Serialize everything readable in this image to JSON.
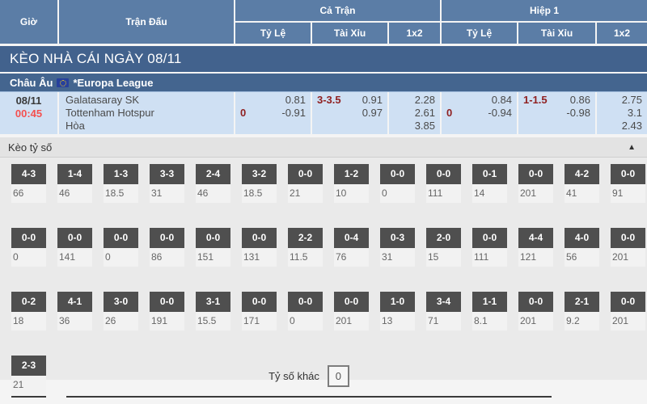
{
  "colors": {
    "header_blue": "#5b7da6",
    "banner_blue": "#42628d",
    "match_row_blue": "#cfe0f3",
    "handicap_maroon": "#8f1f1f",
    "time_red": "#f4504f",
    "score_pill_gray": "#4f4f4f"
  },
  "header": {
    "col_time": "Giờ",
    "col_match": "Trận Đấu",
    "group_full": "Cả Trận",
    "group_half": "Hiệp 1",
    "sub_handicap": "Tỷ Lệ",
    "sub_overunder": "Tài Xỉu",
    "sub_1x2": "1x2"
  },
  "banner": {
    "title": "KÈO NHÀ CÁI NGÀY 08/11"
  },
  "league": {
    "region": "Châu Âu",
    "name": "*Europa League"
  },
  "match": {
    "date": "08/11",
    "time": "00:45",
    "home": "Galatasaray SK",
    "away": "Tottenham Hotspur",
    "draw_label": "Hòa",
    "full": {
      "handicap_line": "0",
      "handicap_home": "0.81",
      "handicap_away": "-0.91",
      "ou_line": "3-3.5",
      "ou_over": "0.91",
      "ou_under": "0.97",
      "x12_home": "2.28",
      "x12_away": "2.61",
      "x12_draw": "3.85"
    },
    "half": {
      "handicap_line": "0",
      "handicap_home": "0.84",
      "handicap_away": "-0.94",
      "ou_line": "1-1.5",
      "ou_over": "0.86",
      "ou_under": "-0.98",
      "x12_home": "2.75",
      "x12_away": "3.1",
      "x12_draw": "2.43"
    }
  },
  "score_section": {
    "title": "Kèo tỷ số",
    "collapse_icon": "▲",
    "rows": [
      [
        {
          "score": "4-3",
          "odds": "66"
        },
        {
          "score": "1-4",
          "odds": "46"
        },
        {
          "score": "1-3",
          "odds": "18.5"
        },
        {
          "score": "3-3",
          "odds": "31"
        },
        {
          "score": "2-4",
          "odds": "46"
        },
        {
          "score": "3-2",
          "odds": "18.5"
        },
        {
          "score": "0-0",
          "odds": "21"
        },
        {
          "score": "1-2",
          "odds": "10"
        },
        {
          "score": "0-0",
          "odds": "0"
        },
        {
          "score": "0-0",
          "odds": "111"
        },
        {
          "score": "0-1",
          "odds": "14"
        },
        {
          "score": "0-0",
          "odds": "201"
        },
        {
          "score": "4-2",
          "odds": "41"
        },
        {
          "score": "0-0",
          "odds": "91"
        }
      ],
      [
        {
          "score": "0-0",
          "odds": "0"
        },
        {
          "score": "0-0",
          "odds": "141"
        },
        {
          "score": "0-0",
          "odds": "0"
        },
        {
          "score": "0-0",
          "odds": "86"
        },
        {
          "score": "0-0",
          "odds": "151"
        },
        {
          "score": "0-0",
          "odds": "131"
        },
        {
          "score": "2-2",
          "odds": "11.5"
        },
        {
          "score": "0-4",
          "odds": "76"
        },
        {
          "score": "0-3",
          "odds": "31"
        },
        {
          "score": "2-0",
          "odds": "15"
        },
        {
          "score": "0-0",
          "odds": "111"
        },
        {
          "score": "4-4",
          "odds": "121"
        },
        {
          "score": "4-0",
          "odds": "56"
        },
        {
          "score": "0-0",
          "odds": "201"
        }
      ],
      [
        {
          "score": "0-2",
          "odds": "18"
        },
        {
          "score": "4-1",
          "odds": "36"
        },
        {
          "score": "3-0",
          "odds": "26"
        },
        {
          "score": "0-0",
          "odds": "191"
        },
        {
          "score": "3-1",
          "odds": "15.5"
        },
        {
          "score": "0-0",
          "odds": "171"
        },
        {
          "score": "0-0",
          "odds": "0"
        },
        {
          "score": "0-0",
          "odds": "201"
        },
        {
          "score": "1-0",
          "odds": "13"
        },
        {
          "score": "3-4",
          "odds": "71"
        },
        {
          "score": "1-1",
          "odds": "8.1"
        },
        {
          "score": "0-0",
          "odds": "201"
        },
        {
          "score": "2-1",
          "odds": "9.2"
        },
        {
          "score": "0-0",
          "odds": "201"
        }
      ],
      [
        {
          "score": "2-3",
          "odds": "21"
        }
      ]
    ],
    "other_label": "Tỷ số khác",
    "other_value": "0"
  }
}
